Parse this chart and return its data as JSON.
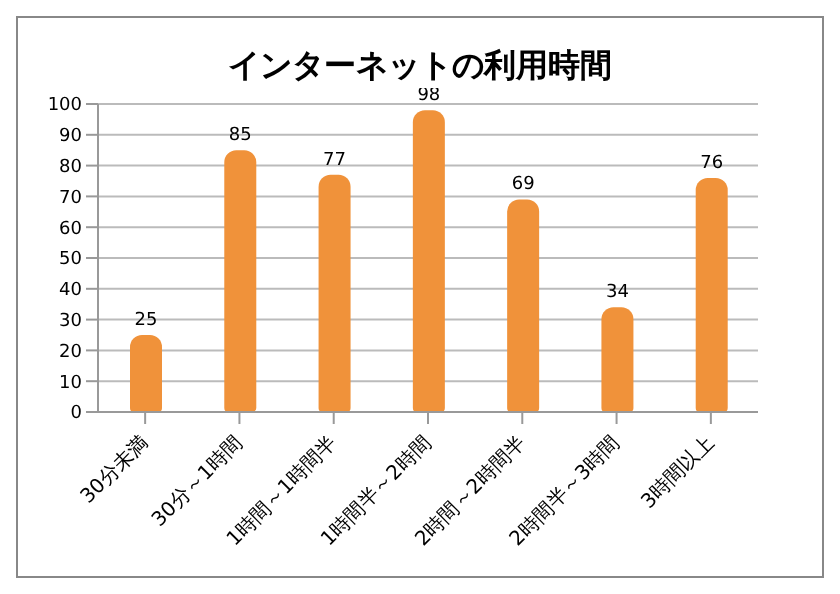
{
  "chart_data": {
    "type": "bar",
    "title": "インターネットの利用時間",
    "categories": [
      "30分未満",
      "30分～1時間",
      "1時間～1時間半",
      "1時間半～2時間",
      "2時間～2時間半",
      "2時間半～3時間",
      "3時間以上"
    ],
    "values": [
      25,
      85,
      77,
      98,
      69,
      34,
      76
    ],
    "color": "#f0923a",
    "ylim": [
      0,
      100
    ],
    "yticks": [
      0,
      10,
      20,
      30,
      40,
      50,
      60,
      70,
      80,
      90,
      100
    ],
    "grid": "y",
    "data_labels": true
  }
}
